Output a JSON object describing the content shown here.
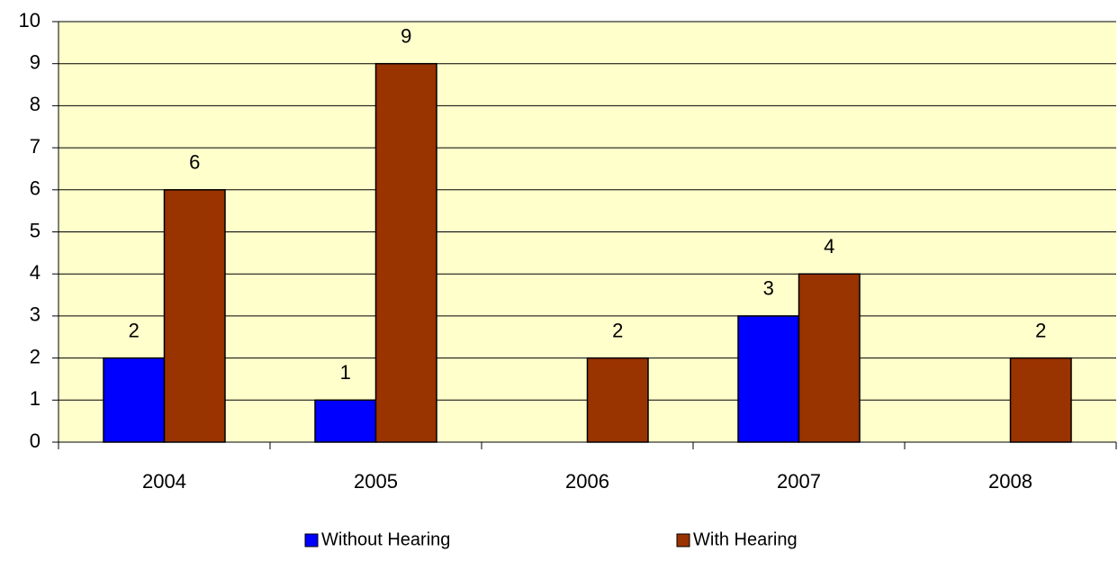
{
  "chart_data": {
    "type": "bar",
    "categories": [
      "2004",
      "2005",
      "2006",
      "2007",
      "2008"
    ],
    "series": [
      {
        "name": "Without Hearing",
        "color": "#0000ff",
        "values": [
          2,
          1,
          null,
          3,
          null
        ]
      },
      {
        "name": "With Hearing",
        "color": "#993300",
        "values": [
          6,
          9,
          2,
          4,
          2
        ]
      }
    ],
    "ylim": [
      0,
      10
    ],
    "yticks": [
      0,
      1,
      2,
      3,
      4,
      5,
      6,
      7,
      8,
      9,
      10
    ],
    "grid": true,
    "plot_background": "#ffffcc",
    "legend": "bottom"
  }
}
